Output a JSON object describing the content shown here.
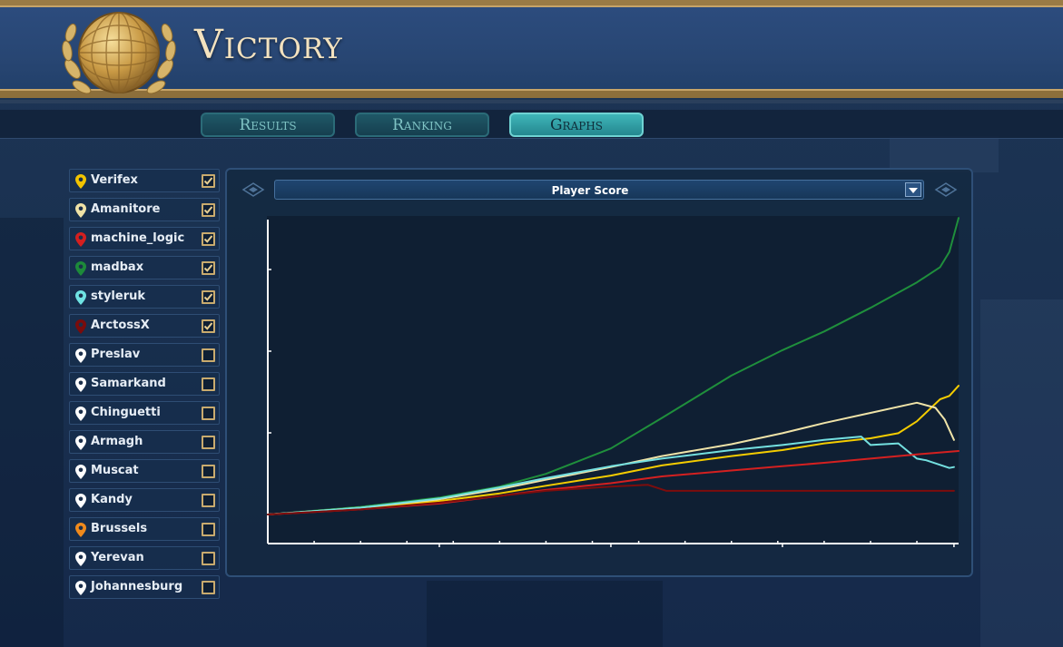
{
  "header": {
    "title": "Victory"
  },
  "tabs": [
    {
      "label": "Results",
      "active": false
    },
    {
      "label": "Ranking",
      "active": false
    },
    {
      "label": "Graphs",
      "active": true
    }
  ],
  "players": [
    {
      "name": "Verifex",
      "pin_color": "#f2c400",
      "checked": true
    },
    {
      "name": "Amanitore",
      "pin_color": "#efe2a6",
      "checked": true
    },
    {
      "name": "machine_logic",
      "pin_color": "#d41f1f",
      "checked": true
    },
    {
      "name": "madbax",
      "pin_color": "#1d8a3a",
      "checked": true
    },
    {
      "name": "styleruk",
      "pin_color": "#6fe3e3",
      "checked": true
    },
    {
      "name": "ArctossX",
      "pin_color": "#7a0c0c",
      "checked": true
    },
    {
      "name": "Preslav",
      "pin_color": "#ffffff",
      "checked": false
    },
    {
      "name": "Samarkand",
      "pin_color": "#ffffff",
      "checked": false
    },
    {
      "name": "Chinguetti",
      "pin_color": "#ffffff",
      "checked": false
    },
    {
      "name": "Armagh",
      "pin_color": "#ffffff",
      "checked": false
    },
    {
      "name": "Muscat",
      "pin_color": "#ffffff",
      "checked": false
    },
    {
      "name": "Kandy",
      "pin_color": "#ffffff",
      "checked": false
    },
    {
      "name": "Brussels",
      "pin_color": "#f08a1c",
      "checked": false
    },
    {
      "name": "Yerevan",
      "pin_color": "#ffffff",
      "checked": false
    },
    {
      "name": "Johannesburg",
      "pin_color": "#ffffff",
      "checked": false
    }
  ],
  "graph_selector": {
    "selected": "Player Score"
  },
  "chart_data": {
    "type": "line",
    "title": "",
    "xlabel": "",
    "ylabel": "",
    "xlim": [
      0,
      149
    ],
    "ylim": [
      0,
      1750
    ],
    "x_ticks": [
      37,
      74,
      111,
      148
    ],
    "y_ticks": [
      0,
      482,
      964,
      1446
    ],
    "series": [
      {
        "name": "madbax",
        "color": "#1f8f3c",
        "x": [
          0,
          20,
          37,
          50,
          60,
          74,
          85,
          100,
          111,
          120,
          130,
          140,
          145,
          147,
          149
        ],
        "y": [
          0,
          45,
          100,
          165,
          240,
          390,
          570,
          820,
          970,
          1080,
          1220,
          1370,
          1460,
          1550,
          1750
        ]
      },
      {
        "name": "Verifex",
        "color": "#f4cc00",
        "x": [
          0,
          20,
          37,
          50,
          60,
          74,
          85,
          100,
          111,
          120,
          130,
          136,
          140,
          145,
          147,
          149
        ],
        "y": [
          0,
          35,
          80,
          125,
          170,
          230,
          290,
          345,
          380,
          420,
          450,
          480,
          550,
          680,
          700,
          760
        ]
      },
      {
        "name": "Amanitore",
        "color": "#efe3a8",
        "x": [
          0,
          20,
          37,
          50,
          60,
          74,
          85,
          100,
          111,
          120,
          130,
          140,
          144,
          146,
          148
        ],
        "y": [
          0,
          40,
          90,
          150,
          205,
          280,
          345,
          415,
          480,
          540,
          600,
          660,
          630,
          560,
          440
        ]
      },
      {
        "name": "styleruk",
        "color": "#74e0e0",
        "x": [
          0,
          20,
          37,
          50,
          60,
          74,
          85,
          100,
          111,
          120,
          128,
          130,
          136,
          140,
          142,
          147,
          148
        ],
        "y": [
          0,
          40,
          95,
          160,
          215,
          285,
          330,
          380,
          410,
          440,
          460,
          410,
          420,
          330,
          320,
          275,
          280
        ]
      },
      {
        "name": "machine_logic",
        "color": "#d42020",
        "x": [
          0,
          20,
          37,
          50,
          60,
          74,
          85,
          100,
          111,
          120,
          130,
          140,
          149
        ],
        "y": [
          0,
          30,
          65,
          110,
          145,
          185,
          225,
          260,
          285,
          305,
          330,
          355,
          375
        ]
      },
      {
        "name": "ArctossX",
        "color": "#7d0d0d",
        "x": [
          0,
          20,
          37,
          50,
          60,
          74,
          82,
          86,
          95,
          110,
          130,
          148
        ],
        "y": [
          0,
          30,
          70,
          110,
          140,
          165,
          175,
          140,
          140,
          140,
          140,
          140
        ]
      }
    ],
    "grid": false,
    "legend": "none"
  }
}
